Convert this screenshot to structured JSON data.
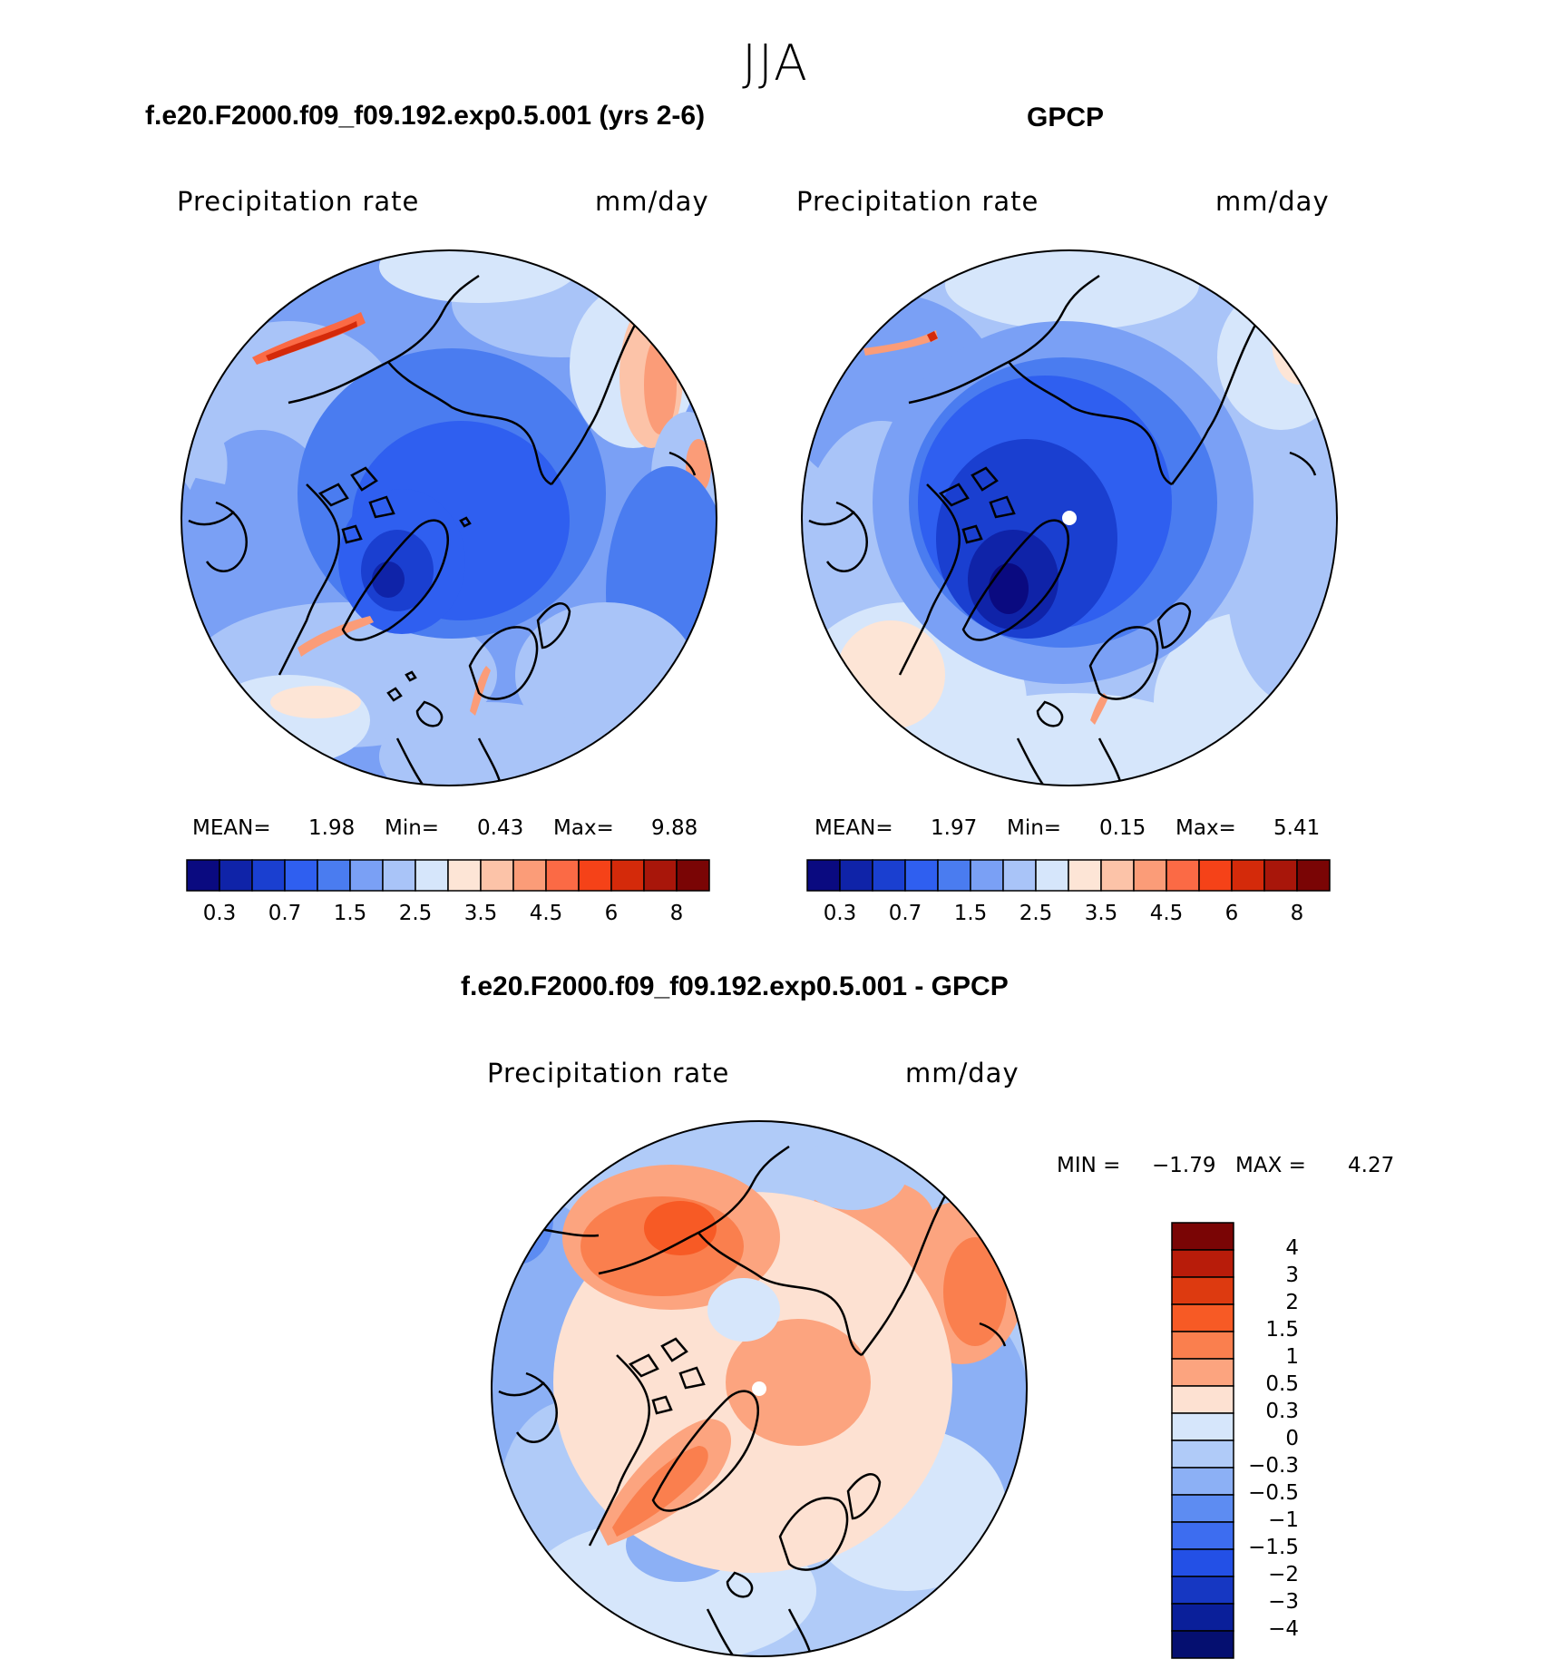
{
  "figure": {
    "season": "JJA"
  },
  "panels": {
    "model": {
      "title": "f.e20.F2000.f09_f09.192.exp0.5.001 (yrs 2-6)",
      "variable": "Precipitation  rate",
      "units": "mm/day",
      "mean_label": "MEAN=",
      "mean": "1.98",
      "min_label": "Min=",
      "min": "0.43",
      "max_label": "Max=",
      "max": "9.88"
    },
    "obs": {
      "title": "GPCP",
      "variable": "Precipitation  rate",
      "units": "mm/day",
      "mean_label": "MEAN=",
      "mean": "1.97",
      "min_label": "Min=",
      "min": "0.15",
      "max_label": "Max=",
      "max": "5.41"
    },
    "diff": {
      "title": "f.e20.F2000.f09_f09.192.exp0.5.001 - GPCP",
      "variable": "Precipitation  rate",
      "units": "mm/day",
      "min_label": "MIN =",
      "min": "−1.79",
      "max_label": "MAX =",
      "max": "4.27"
    }
  },
  "colorbars": {
    "abs": {
      "colors": [
        "#0a0a80",
        "#0f23a8",
        "#1a3fd0",
        "#2f5ff0",
        "#4a7cf0",
        "#7aa0f5",
        "#a9c4f8",
        "#d6e6fb",
        "#fde5d6",
        "#fcc3a8",
        "#fb9c78",
        "#fb6a45",
        "#f54218",
        "#d42a0a",
        "#a8160a",
        "#7a0505"
      ],
      "tick_labels": [
        "0.3",
        "0.7",
        "1.5",
        "2.5",
        "3.5",
        "4.5",
        "6",
        "8"
      ]
    },
    "diff": {
      "colors": [
        "#7a0505",
        "#b81c0a",
        "#dd3a10",
        "#f75a25",
        "#fa7f4e",
        "#fca47f",
        "#fde1d2",
        "#d6e6fb",
        "#b0cbf8",
        "#8cb0f5",
        "#5d8cf2",
        "#3d6df0",
        "#2350e6",
        "#1637c2",
        "#0a1f9a",
        "#050f70"
      ],
      "tick_labels": [
        "4",
        "3",
        "2",
        "1.5",
        "1",
        "0.5",
        "0.3",
        "0",
        "−0.3",
        "−0.5",
        "−1",
        "−1.5",
        "−2",
        "−3",
        "−4"
      ]
    }
  }
}
